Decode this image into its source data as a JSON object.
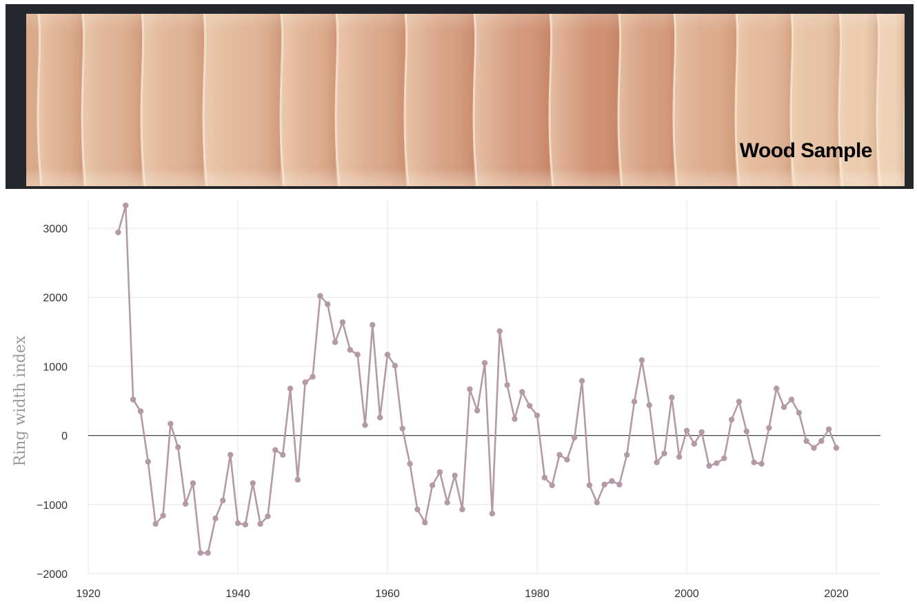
{
  "wood_panel": {
    "label": "Wood Sample"
  },
  "colors": {
    "series": "#b39aa6",
    "zero_line": "#444444",
    "grid": "#e6e6e6",
    "panel_bg": "#24272c"
  },
  "chart_data": {
    "type": "line",
    "title": "",
    "xlabel": "",
    "ylabel": "Ring width index",
    "xlim": [
      1918,
      2026
    ],
    "ylim": [
      -2000,
      3300
    ],
    "x_ticks": [
      1920,
      1940,
      1960,
      1980,
      2000,
      2020
    ],
    "y_ticks": [
      3000,
      2000,
      1000,
      0,
      -1000,
      -2000
    ],
    "y_tick_labels": [
      "3000",
      "2000",
      "1000",
      "0",
      "−1000",
      "−2000"
    ],
    "grid": true,
    "zero_line": true,
    "series": [
      {
        "x": [
          1924,
          1925,
          1926,
          1927,
          1928,
          1929,
          1930,
          1931,
          1932,
          1933,
          1934,
          1935,
          1936,
          1937,
          1938,
          1939,
          1940,
          1941,
          1942,
          1943,
          1944,
          1945,
          1946,
          1947,
          1948,
          1949,
          1950,
          1951,
          1952,
          1953,
          1954,
          1955,
          1956,
          1957,
          1958,
          1959,
          1960,
          1961,
          1962,
          1963,
          1964,
          1965,
          1966,
          1967,
          1968,
          1969,
          1970,
          1971,
          1972,
          1973,
          1974,
          1975,
          1976,
          1977,
          1978,
          1979,
          1980,
          1981,
          1982,
          1983,
          1984,
          1985,
          1986,
          1987,
          1988,
          1989,
          1990,
          1991,
          1992,
          1993,
          1994,
          1995,
          1996,
          1997,
          1998,
          1999,
          2000,
          2001,
          2002,
          2003,
          2004,
          2005,
          2006,
          2007,
          2008,
          2009,
          2010,
          2011,
          2012,
          2013,
          2014,
          2015,
          2016,
          2017,
          2018,
          2019,
          2020
        ],
        "y": [
          2940,
          3330,
          520,
          350,
          -380,
          -1280,
          -1160,
          170,
          -170,
          -990,
          -690,
          -1700,
          -1700,
          -1200,
          -940,
          -280,
          -1270,
          -1290,
          -690,
          -1280,
          -1170,
          -210,
          -280,
          680,
          -640,
          770,
          850,
          2020,
          1900,
          1350,
          1640,
          1240,
          1170,
          150,
          1600,
          260,
          1170,
          1010,
          100,
          -410,
          -1070,
          -1260,
          -720,
          -530,
          -970,
          -580,
          -1070,
          670,
          360,
          1050,
          -1130,
          1510,
          730,
          240,
          630,
          430,
          290,
          -610,
          -720,
          -280,
          -350,
          -30,
          790,
          -720,
          -970,
          -710,
          -660,
          -710,
          -280,
          490,
          1090,
          440,
          -390,
          -260,
          550,
          -310,
          70,
          -120,
          50,
          -440,
          -400,
          -330,
          230,
          490,
          60,
          -390,
          -410,
          110,
          680,
          410,
          520,
          330,
          -80,
          -180,
          -80,
          90,
          -180
        ]
      }
    ]
  }
}
